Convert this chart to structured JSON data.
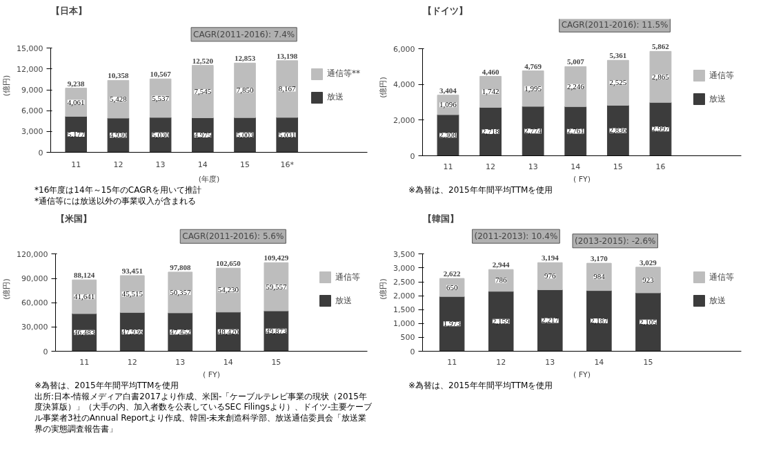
{
  "chart_data": [
    {
      "type": "bar",
      "stacked": true,
      "title": "【日本】",
      "ylabel": "(億円)",
      "xlabel": "(年度)",
      "categories": [
        "11",
        "12",
        "13",
        "14",
        "15",
        "16*"
      ],
      "series": [
        {
          "name": "放送",
          "color": "#3c3c3c",
          "values": [
            5177,
            4930,
            5030,
            4975,
            5003,
            5031
          ],
          "value_labels": [
            "5,177",
            "4,930",
            "5,030",
            "4,975",
            "5,003",
            "5,031"
          ]
        },
        {
          "name": "通信等**",
          "color": "#bdbdbd",
          "values": [
            4061,
            5428,
            5537,
            7545,
            7850,
            8167
          ],
          "value_labels": [
            "4,061",
            "5,428",
            "5,537",
            "7,545",
            "7,850",
            "8,167"
          ]
        }
      ],
      "totals": [
        "9,238",
        "10,358",
        "10,567",
        "12,520",
        "12,853",
        "13,198"
      ],
      "ylim": [
        0,
        15000
      ],
      "yticks": [
        {
          "value": 0,
          "label": "0"
        },
        {
          "value": 3000,
          "label": "3,000"
        },
        {
          "value": 6000,
          "label": "6,000"
        },
        {
          "value": 9000,
          "label": "9,000"
        },
        {
          "value": 12000,
          "label": "12,000"
        },
        {
          "value": 15000,
          "label": "15,000"
        }
      ],
      "legend": "right",
      "annotations": [
        {
          "text": "CAGR(2011-2016): 7.4%",
          "x": "16*",
          "y": 13198
        },
        "*16年度は14年～15年のCAGRを用いて推計",
        "*通信等には放送以外の事業収入が含まれる"
      ]
    },
    {
      "type": "bar",
      "stacked": true,
      "title": "【ドイツ】",
      "ylabel": "(億円)",
      "xlabel": "( FY)",
      "categories": [
        "11",
        "12",
        "13",
        "14",
        "15",
        "16"
      ],
      "series": [
        {
          "name": "放送",
          "color": "#3c3c3c",
          "values": [
            2308,
            2718,
            2774,
            2761,
            2836,
            2997
          ],
          "value_labels": [
            "2,308",
            "2,718",
            "2,774",
            "2,761",
            "2,836",
            "2,997"
          ]
        },
        {
          "name": "通信等",
          "color": "#bdbdbd",
          "values": [
            1096,
            1742,
            1995,
            2246,
            2525,
            2865
          ],
          "value_labels": [
            "1,096",
            "1,742",
            "1,995",
            "2,246",
            "2,525",
            "2,865"
          ]
        }
      ],
      "totals": [
        "3,404",
        "4,460",
        "4,769",
        "5,007",
        "5,361",
        "5,862"
      ],
      "ylim": [
        0,
        6000
      ],
      "yticks": [
        {
          "value": 0,
          "label": "0"
        },
        {
          "value": 2000,
          "label": "2,000"
        },
        {
          "value": 4000,
          "label": "4,000"
        },
        {
          "value": 6000,
          "label": "6,000"
        }
      ],
      "legend": "right",
      "annotations": [
        {
          "text": "CAGR(2011-2016): 11.5%",
          "x": "16",
          "y": 5862
        },
        "※為替は、2015年年間平均TTMを使用"
      ]
    },
    {
      "type": "bar",
      "stacked": true,
      "title": "【米国】",
      "ylabel": "(億円)",
      "xlabel": "( FY)",
      "categories": [
        "11",
        "12",
        "13",
        "14",
        "15"
      ],
      "series": [
        {
          "name": "放送",
          "color": "#3c3c3c",
          "values": [
            46483,
            47936,
            47452,
            48420,
            49873
          ],
          "value_labels": [
            "46,483",
            "47,936",
            "47,452",
            "48,420",
            "49,873"
          ]
        },
        {
          "name": "通信等",
          "color": "#bdbdbd",
          "values": [
            41641,
            45515,
            50357,
            54230,
            59557
          ],
          "value_labels": [
            "41,641",
            "45,515",
            "50,357",
            "54,230",
            "59,557"
          ]
        }
      ],
      "totals": [
        "88,124",
        "93,451",
        "97,808",
        "102,650",
        "109,429"
      ],
      "ylim": [
        0,
        120000
      ],
      "yticks": [
        {
          "value": 0,
          "label": "0"
        },
        {
          "value": 30000,
          "label": "30,000"
        },
        {
          "value": 60000,
          "label": "60,000"
        },
        {
          "value": 90000,
          "label": "90,000"
        },
        {
          "value": 120000,
          "label": "120,000"
        }
      ],
      "legend": "right",
      "annotations": [
        {
          "text": "CAGR(2011-2016): 5.6%",
          "x": "15",
          "y": 109429
        },
        "※為替は、2015年年間平均TTMを使用",
        "出所:日本-情報メディア白書2017より作成、米国-「ケーブルテレビ事業の現状（2015年度決算版）」（大手の内、加入者数を公表しているSEC Filingsより）、ドイツ-主要ケーブル事業者3社のAnnual Reportより作成、韓国-未来創造科学部、放送通信委員会「放送業界の実態調査報告書」"
      ]
    },
    {
      "type": "bar",
      "stacked": true,
      "title": "【韓国】",
      "ylabel": "(億円)",
      "xlabel": "( FY)",
      "categories": [
        "11",
        "12",
        "13",
        "14",
        "15"
      ],
      "series": [
        {
          "name": "放送",
          "color": "#3c3c3c",
          "values": [
            1973,
            2159,
            2217,
            2187,
            2105
          ],
          "value_labels": [
            "1,973",
            "2,159",
            "2,217",
            "2,187",
            "2,105"
          ]
        },
        {
          "name": "通信等",
          "color": "#bdbdbd",
          "values": [
            650,
            786,
            976,
            984,
            923
          ],
          "value_labels": [
            "650",
            "786",
            "976",
            "984",
            "923"
          ]
        }
      ],
      "totals": [
        "2,622",
        "2,944",
        "3,194",
        "3,170",
        "3,029"
      ],
      "ylim": [
        0,
        3500
      ],
      "yticks": [
        {
          "value": 0,
          "label": "0"
        },
        {
          "value": 500,
          "label": "500"
        },
        {
          "value": 1000,
          "label": "1,000"
        },
        {
          "value": 1500,
          "label": "1,500"
        },
        {
          "value": 2000,
          "label": "2,000"
        },
        {
          "value": 2500,
          "label": "2,500"
        },
        {
          "value": 3000,
          "label": "3,000"
        },
        {
          "value": 3500,
          "label": "3,500"
        }
      ],
      "legend": "right",
      "annotations": [
        {
          "text": "(2011-2013): 10.4%",
          "x": "13",
          "y": 3194
        },
        {
          "text": "(2013-2015): -2.6%",
          "x": "15",
          "y": 3029
        },
        "※為替は、2015年年間平均TTMを使用"
      ]
    }
  ]
}
